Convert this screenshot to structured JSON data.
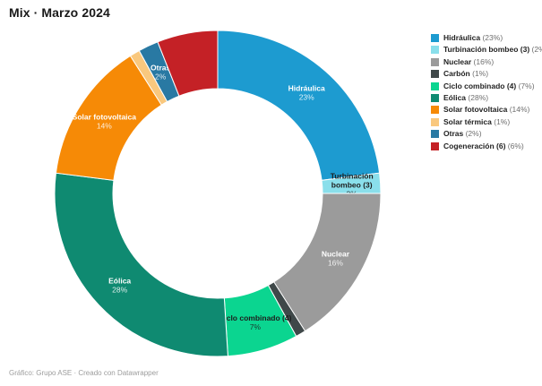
{
  "header": {
    "title": "Mix · Marzo 2024"
  },
  "footer": {
    "credit": "Gráfico: Grupo ASE · Creado con Datawrapper"
  },
  "chart_data": {
    "type": "pie",
    "subtype": "donut",
    "title": "Mix · Marzo 2024",
    "unit": "%",
    "start": "top",
    "direction": "clockwise",
    "legend_position": "top-right",
    "total": 100,
    "slices": [
      {
        "name": "Hidráulica",
        "value": 23,
        "color": "#1D9BD0",
        "show_label": true,
        "label_lines": [
          "Hidráulica"
        ],
        "label_pct": "23%",
        "label_color": "#ffffff"
      },
      {
        "name": "Turbinación bombeo (3)",
        "value": 2,
        "color": "#8ADFEB",
        "show_label": true,
        "label_lines": [
          "Turbinación",
          "bombeo (3)"
        ],
        "label_pct": "2%",
        "label_color": "#1d1d1d"
      },
      {
        "name": "Nuclear",
        "value": 16,
        "color": "#9B9B9B",
        "show_label": true,
        "label_lines": [
          "Nuclear"
        ],
        "label_pct": "16%",
        "label_color": "#ffffff"
      },
      {
        "name": "Carbón",
        "value": 1,
        "color": "#3F4849",
        "show_label": false,
        "label_lines": [],
        "label_pct": "1%",
        "label_color": "#ffffff"
      },
      {
        "name": "Ciclo combinado (4)",
        "value": 7,
        "color": "#0BD590",
        "show_label": true,
        "label_lines": [
          "Ciclo combinado (4)"
        ],
        "label_pct": "7%",
        "label_color": "#1d1d1d"
      },
      {
        "name": "Eólica",
        "value": 28,
        "color": "#0F8A71",
        "show_label": true,
        "label_lines": [
          "Eólica"
        ],
        "label_pct": "28%",
        "label_color": "#ffffff"
      },
      {
        "name": "Solar fotovoltaica",
        "value": 14,
        "color": "#F68A06",
        "show_label": true,
        "label_lines": [
          "Solar fotovoltaica"
        ],
        "label_pct": "14%",
        "label_color": "#ffffff"
      },
      {
        "name": "Solar térmica",
        "value": 1,
        "color": "#F9C87E",
        "show_label": false,
        "label_lines": [],
        "label_pct": "1%",
        "label_color": "#1d1d1d"
      },
      {
        "name": "Otras",
        "value": 2,
        "color": "#2979A3",
        "show_label": true,
        "label_lines": [
          "Otras"
        ],
        "label_pct": "2%",
        "label_color": "#ffffff"
      },
      {
        "name": "Cogeneración (6)",
        "value": 6,
        "color": "#C42126",
        "show_label": false,
        "label_lines": [],
        "label_pct": "6%",
        "label_color": "#ffffff"
      }
    ]
  }
}
